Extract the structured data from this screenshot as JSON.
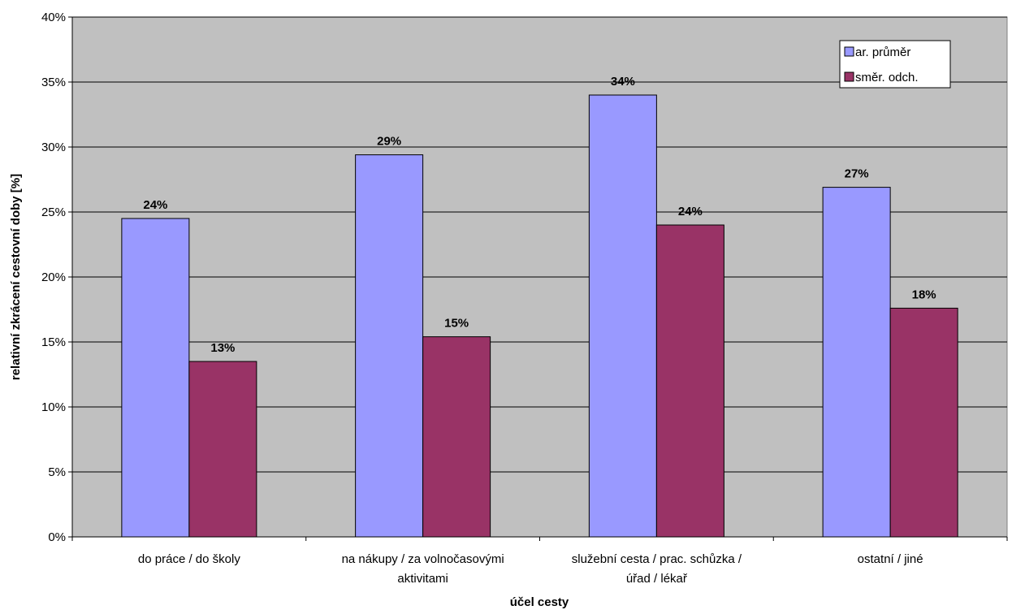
{
  "chart_data": {
    "type": "bar",
    "title": "",
    "xlabel": "účel cesty",
    "ylabel": "relativní zkrácení cestovní doby [%]",
    "ylim": [
      0,
      40
    ],
    "y_ticks": [
      0,
      5,
      10,
      15,
      20,
      25,
      30,
      35,
      40
    ],
    "y_tick_suffix": "%",
    "categories": [
      [
        "do práce / do školy"
      ],
      [
        "na nákupy / za volnočasovými",
        "aktivitami"
      ],
      [
        "služební cesta / prac. schůzka /",
        "úřad / lékař"
      ],
      [
        "ostatní / jiné"
      ]
    ],
    "series": [
      {
        "name": "ar. průměr",
        "color": "#9999ff",
        "values": [
          24.5,
          29.4,
          34.0,
          26.9
        ],
        "labels": [
          "24%",
          "29%",
          "34%",
          "27%"
        ]
      },
      {
        "name": "směr. odch.",
        "color": "#993366",
        "values": [
          13.5,
          15.4,
          24.0,
          17.6
        ],
        "labels": [
          "13%",
          "15%",
          "24%",
          "18%"
        ]
      }
    ],
    "plot_background": "#c0c0c0",
    "grid": true,
    "legend_position": "top-right"
  }
}
